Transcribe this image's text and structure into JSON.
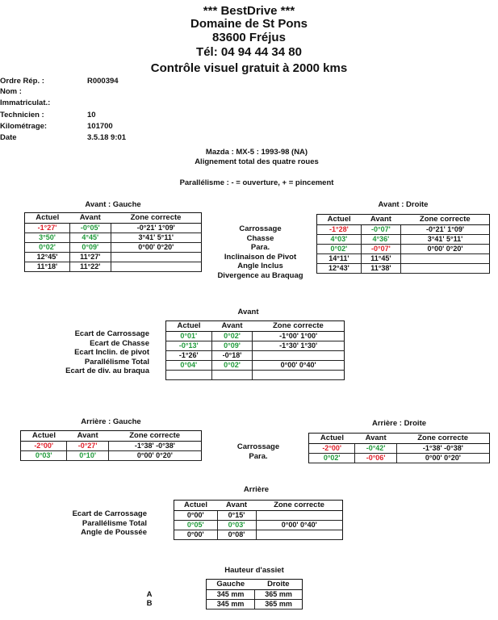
{
  "header": {
    "line1": "*** BestDrive ***",
    "line2": "Domaine de St Pons",
    "line3": "83600 Fréjus",
    "line4": "Tél: 04 94 44 34 80",
    "line5": "Contrôle visuel gratuit à 2000 kms"
  },
  "info": [
    {
      "label": "Ordre Rép. :",
      "value": "R000394"
    },
    {
      "label": "Nom :",
      "value": ""
    },
    {
      "label": "Immatriculat.:",
      "value": ""
    },
    {
      "label": "Technicien :",
      "value": "10"
    },
    {
      "label": "Kilométrage:",
      "value": "101700"
    },
    {
      "label": "Date",
      "value": "3.5.18 9:01"
    }
  ],
  "vehicle": {
    "model": "Mazda : MX-5 : 1993-98 (NA)",
    "subtitle": "Alignement total des quatre roues",
    "legend": "Parallélisme : - = ouverture, + = pincement"
  },
  "headers": {
    "actuel": "Actuel",
    "avant": "Avant",
    "zone": "Zone correcte"
  },
  "front_left": {
    "title": "Avant : Gauche",
    "rows": [
      {
        "actuel": "-1°27'",
        "avant": "-0°05'",
        "zone": "-0°21' 1°09'",
        "ca": "r",
        "cb": "g"
      },
      {
        "actuel": "3°50'",
        "avant": "4°45'",
        "zone": "3°41' 5°11'",
        "ca": "g",
        "cb": "g"
      },
      {
        "actuel": "0°02'",
        "avant": "0°09'",
        "zone": "0°00' 0°20'",
        "ca": "g",
        "cb": "g"
      },
      {
        "actuel": "12°45'",
        "avant": "11°27'",
        "zone": "",
        "ca": "k",
        "cb": "k"
      },
      {
        "actuel": "11°18'",
        "avant": "11°22'",
        "zone": "",
        "ca": "k",
        "cb": "k"
      }
    ]
  },
  "front_right": {
    "title": "Avant : Droite",
    "rows": [
      {
        "actuel": "-1°28'",
        "avant": "-0°07'",
        "zone": "-0°21' 1°09'",
        "ca": "r",
        "cb": "g"
      },
      {
        "actuel": "4°03'",
        "avant": "4°36'",
        "zone": "3°41' 5°11'",
        "ca": "g",
        "cb": "g"
      },
      {
        "actuel": "0°02'",
        "avant": "-0°07'",
        "zone": "0°00' 0°20'",
        "ca": "g",
        "cb": "r"
      },
      {
        "actuel": "14°11'",
        "avant": "11°45'",
        "zone": "",
        "ca": "k",
        "cb": "k"
      },
      {
        "actuel": "12°43'",
        "avant": "11°38'",
        "zone": "",
        "ca": "k",
        "cb": "k"
      }
    ]
  },
  "front_labels": [
    "Carrossage",
    "Chasse",
    "Para.",
    "Inclinaison de Pivot",
    "Angle Inclus",
    "Divergence au Braquag"
  ],
  "front_axle": {
    "title": "Avant",
    "labels": [
      "Ecart de Carrossage",
      "Ecart de Chasse",
      "Ecart Inclin. de pivot",
      "Parallélisme Total",
      "Ecart de div. au braqua"
    ],
    "rows": [
      {
        "actuel": "0°01'",
        "avant": "0°02'",
        "zone": "-1°00' 1°00'",
        "ca": "g",
        "cb": "g"
      },
      {
        "actuel": "-0°13'",
        "avant": "0°09'",
        "zone": "-1°30' 1°30'",
        "ca": "g",
        "cb": "g"
      },
      {
        "actuel": "-1°26'",
        "avant": "-0°18'",
        "zone": "",
        "ca": "k",
        "cb": "k"
      },
      {
        "actuel": "0°04'",
        "avant": "0°02'",
        "zone": "0°00' 0°40'",
        "ca": "g",
        "cb": "g"
      },
      {
        "actuel": "",
        "avant": "",
        "zone": "",
        "ca": "k",
        "cb": "k"
      }
    ]
  },
  "rear_left": {
    "title": "Arrière : Gauche",
    "rows": [
      {
        "actuel": "-2°00'",
        "avant": "-0°27'",
        "zone": "-1°38' -0°38'",
        "ca": "r",
        "cb": "r"
      },
      {
        "actuel": "0°03'",
        "avant": "0°10'",
        "zone": "0°00' 0°20'",
        "ca": "g",
        "cb": "g"
      }
    ]
  },
  "rear_right": {
    "title": "Arrière : Droite",
    "rows": [
      {
        "actuel": "-2°00'",
        "avant": "-0°42'",
        "zone": "-1°38' -0°38'",
        "ca": "r",
        "cb": "g"
      },
      {
        "actuel": "0°02'",
        "avant": "-0°06'",
        "zone": "0°00' 0°20'",
        "ca": "g",
        "cb": "r"
      }
    ]
  },
  "rear_labels": [
    "Carrossage",
    "Para."
  ],
  "rear_axle": {
    "title": "Arrière",
    "labels": [
      "Ecart de Carrossage",
      "Parallélisme Total",
      "Angle de Poussée"
    ],
    "rows": [
      {
        "actuel": "0°00'",
        "avant": "0°15'",
        "zone": "",
        "ca": "k",
        "cb": "k"
      },
      {
        "actuel": "0°05'",
        "avant": "0°03'",
        "zone": "0°00' 0°40'",
        "ca": "g",
        "cb": "g"
      },
      {
        "actuel": "0°00'",
        "avant": "0°08'",
        "zone": "",
        "ca": "k",
        "cb": "k"
      }
    ]
  },
  "ride_height": {
    "title": "Hauteur d'assiet",
    "col_left": "Gauche",
    "col_right": "Droite",
    "rows": [
      {
        "label": "A",
        "left": "345 mm",
        "right": "365 mm"
      },
      {
        "label": "B",
        "left": "345 mm",
        "right": "365 mm"
      }
    ]
  },
  "colors": {
    "in_range": "#1f9a3a",
    "out_of_range": "#e0202a",
    "text": "#111111"
  }
}
